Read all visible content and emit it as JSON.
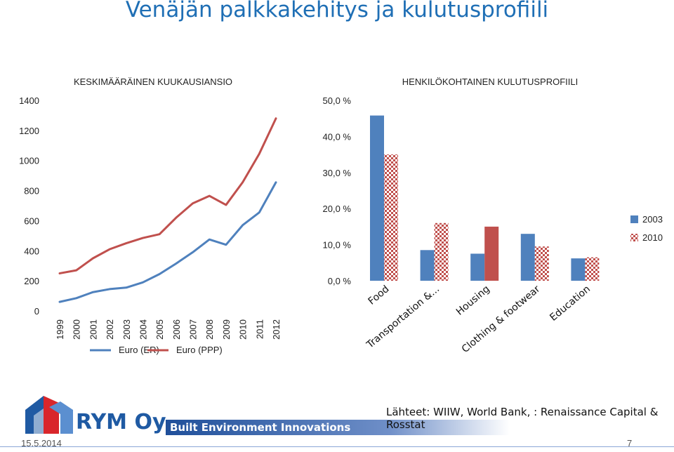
{
  "page": {
    "title": "Venäjän palkkakehitys ja kulutusprofiili",
    "source": "Lähteet: WIIW, World Bank, : Renaissance Capital & Rosstat",
    "date": "15.5.2014",
    "page_number": "7",
    "company": "RYM Oy",
    "tagline": "Built Environment Innovations"
  },
  "colors": {
    "blue": "#4f81bd",
    "red": "#c0504d",
    "title": "#1f6fb5"
  },
  "chart_data": [
    {
      "type": "line",
      "title": "KESKIMÄÄRÄINEN KUUKAUSIANSIO",
      "categories": [
        "1999",
        "2000",
        "2001",
        "2002",
        "2003",
        "2004",
        "2005",
        "2006",
        "2007",
        "2008",
        "2009",
        "2010",
        "2011",
        "2012"
      ],
      "ylim": [
        0,
        1400
      ],
      "yticks": [
        "0",
        "200",
        "400",
        "600",
        "800",
        "1000",
        "1200",
        "1400"
      ],
      "series": [
        {
          "name": "Euro (ER)",
          "color": "#4f81bd",
          "values": [
            60,
            85,
            125,
            145,
            155,
            190,
            245,
            315,
            390,
            475,
            440,
            570,
            655,
            855
          ]
        },
        {
          "name": "Euro (PPP)",
          "color": "#c0504d",
          "values": [
            250,
            270,
            350,
            410,
            450,
            485,
            510,
            620,
            715,
            765,
            705,
            855,
            1045,
            1280
          ]
        }
      ],
      "legend_position": "bottom"
    },
    {
      "type": "bar",
      "title": "HENKILÖKOHTAINEN KULUTUSPROFIILI",
      "categories": [
        "Food",
        "Transportation &...",
        "Housing",
        "Clothing & footwear",
        "Education"
      ],
      "ylim": [
        0,
        50
      ],
      "yticks": [
        "0,0 %",
        "10,0 %",
        "20,0 %",
        "30,0 %",
        "40,0 %",
        "50,0 %"
      ],
      "series": [
        {
          "name": "2003",
          "values": [
            45.8,
            8.5,
            7.5,
            13.0,
            6.2
          ]
        },
        {
          "name": "2010",
          "values": [
            35.0,
            16.0,
            15.0,
            9.5,
            6.5
          ]
        }
      ],
      "legend_position": "right"
    }
  ]
}
